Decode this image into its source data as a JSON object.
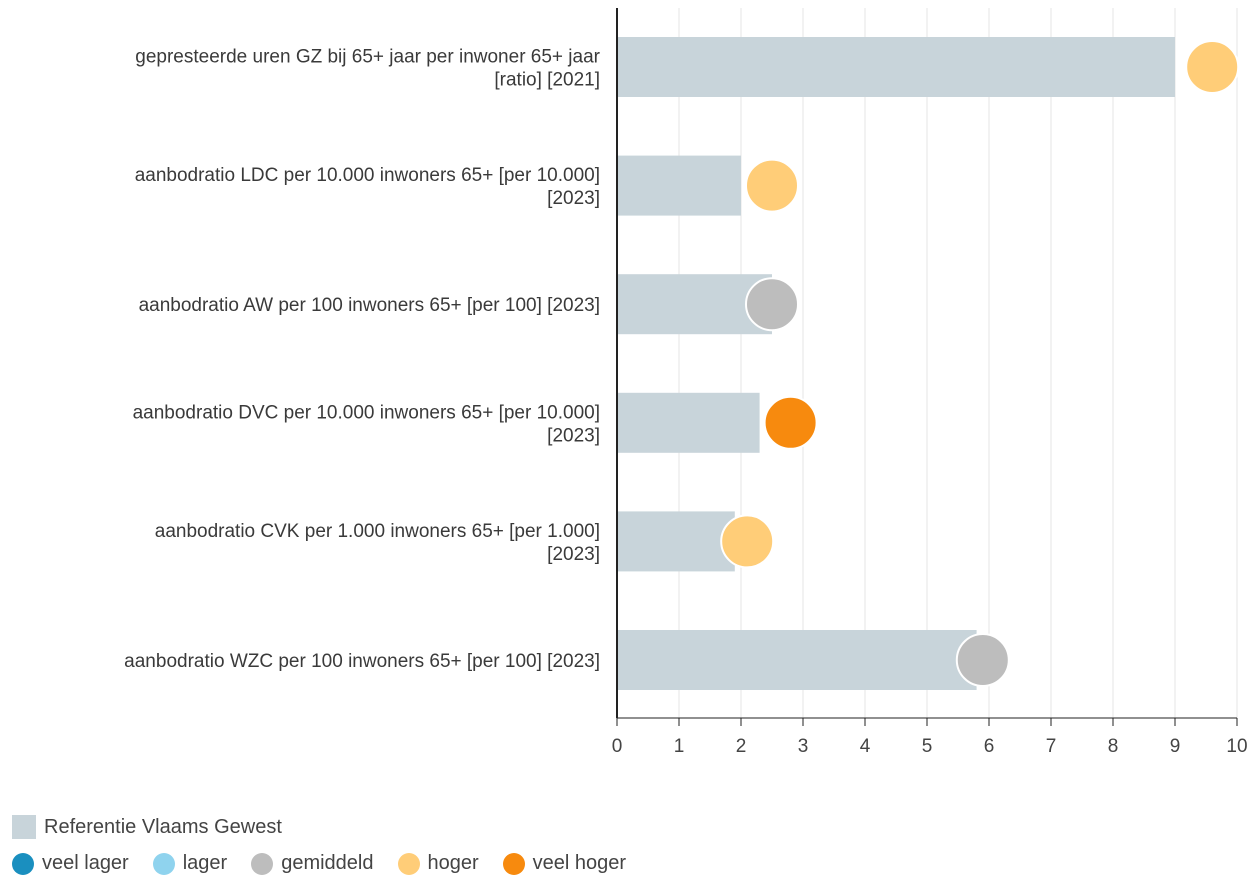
{
  "colors": {
    "bar": "#c8d4da",
    "veel_lager": "#1a8fbf",
    "lager": "#8fd3ee",
    "gemiddeld": "#bdbdbd",
    "hoger": "#ffcd78",
    "veel_hoger": "#f78a0e",
    "grid": "#e6e6e6",
    "axis": "#222222"
  },
  "chart_data": {
    "type": "bar",
    "orientation": "horizontal",
    "categories": [
      [
        "gepresteerde uren GZ bij 65+ jaar per inwoner 65+ jaar",
        "[ratio] [2021]"
      ],
      [
        "aanbodratio LDC per 10.000 inwoners 65+ [per 10.000]",
        "[2023]"
      ],
      [
        "aanbodratio AW per 100 inwoners 65+ [per 100] [2023]"
      ],
      [
        "aanbodratio DVC per 10.000 inwoners 65+ [per 10.000]",
        "[2023]"
      ],
      [
        "aanbodratio CVK per 1.000 inwoners 65+ [per 1.000]",
        "[2023]"
      ],
      [
        "aanbodratio WZC per 100 inwoners 65+ [per 100] [2023]"
      ]
    ],
    "series": [
      {
        "name": "Referentie Vlaams Gewest",
        "type": "bar",
        "values": [
          9.0,
          2.0,
          2.5,
          2.3,
          1.9,
          5.8
        ]
      },
      {
        "type": "marker",
        "values": [
          9.6,
          2.5,
          2.5,
          2.8,
          2.1,
          5.9
        ],
        "status": [
          "hoger",
          "hoger",
          "gemiddeld",
          "veel_hoger",
          "hoger",
          "gemiddeld"
        ]
      }
    ],
    "xlim": [
      0,
      10
    ],
    "xticks": [
      "0",
      "1",
      "2",
      "3",
      "4",
      "5",
      "6",
      "7",
      "8",
      "9",
      "10"
    ],
    "grid": "vertical",
    "legend_position": "bottom-left"
  },
  "legend": {
    "reference_label": "Referentie Vlaams Gewest",
    "status_items": [
      {
        "key": "veel_lager",
        "label": "veel lager"
      },
      {
        "key": "lager",
        "label": "lager"
      },
      {
        "key": "gemiddeld",
        "label": "gemiddeld"
      },
      {
        "key": "hoger",
        "label": "hoger"
      },
      {
        "key": "veel_hoger",
        "label": "veel hoger"
      }
    ]
  }
}
